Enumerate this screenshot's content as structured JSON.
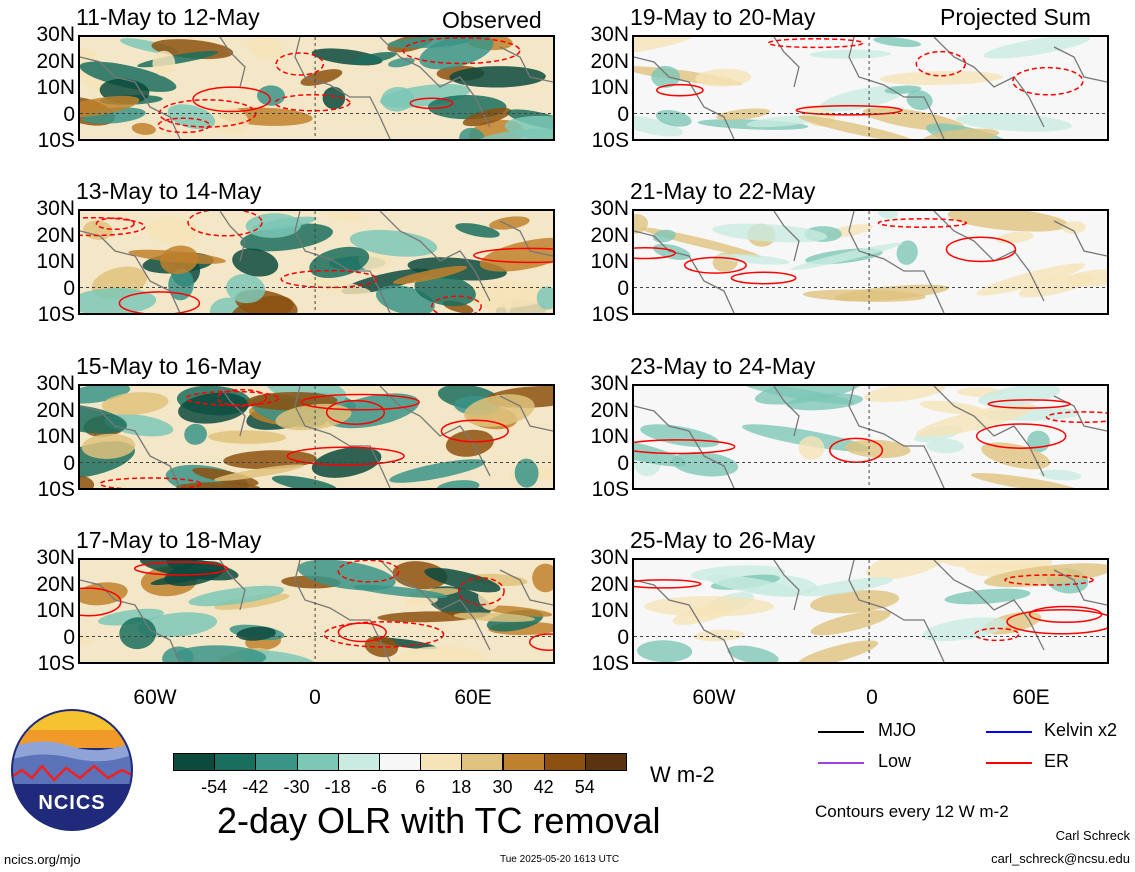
{
  "header": {
    "left_label": "Observed",
    "right_label": "Projected Sum"
  },
  "panels": [
    {
      "title": "11-May to 12-May",
      "col": 0,
      "row": 0
    },
    {
      "title": "13-May to 14-May",
      "col": 0,
      "row": 1
    },
    {
      "title": "15-May to 16-May",
      "col": 0,
      "row": 2
    },
    {
      "title": "17-May to 18-May",
      "col": 0,
      "row": 3
    },
    {
      "title": "19-May to 20-May",
      "col": 1,
      "row": 0
    },
    {
      "title": "21-May to 22-May",
      "col": 1,
      "row": 1
    },
    {
      "title": "23-May to 24-May",
      "col": 1,
      "row": 2
    },
    {
      "title": "25-May to 26-May",
      "col": 1,
      "row": 3
    }
  ],
  "axes": {
    "lat_ticks": [
      "30N",
      "20N",
      "10N",
      "0",
      "10S"
    ],
    "lon_ticks": [
      "60W",
      "0",
      "60E"
    ]
  },
  "colorbar": {
    "ticks": [
      "-54",
      "-42",
      "-30",
      "-18",
      "-6",
      "6",
      "18",
      "30",
      "42",
      "54"
    ],
    "colors": [
      "#0c4a3e",
      "#1a6e5e",
      "#3a9487",
      "#7dc7b7",
      "#c9ebe1",
      "#f7f7f7",
      "#f6e3b8",
      "#dfc27d",
      "#bf812d",
      "#8c5110",
      "#5a3410"
    ],
    "units": "W m-2"
  },
  "legend": {
    "items": [
      {
        "label": "MJO",
        "color": "#000000"
      },
      {
        "label": "Kelvin x2",
        "color": "#0000ff"
      },
      {
        "label": "Low",
        "color": "#a040e0"
      },
      {
        "label": "ER",
        "color": "#ff0000"
      }
    ],
    "contour_note": "Contours every 12 W m-2"
  },
  "logo": {
    "text": "NCICS"
  },
  "main_title": "2-day OLR with TC removal",
  "footer": {
    "url": "ncics.org/mjo",
    "timestamp": "Tue 2025-05-20 1613 UTC",
    "author": "Carl Schreck",
    "email": "carl_schreck@ncsu.edu"
  }
}
